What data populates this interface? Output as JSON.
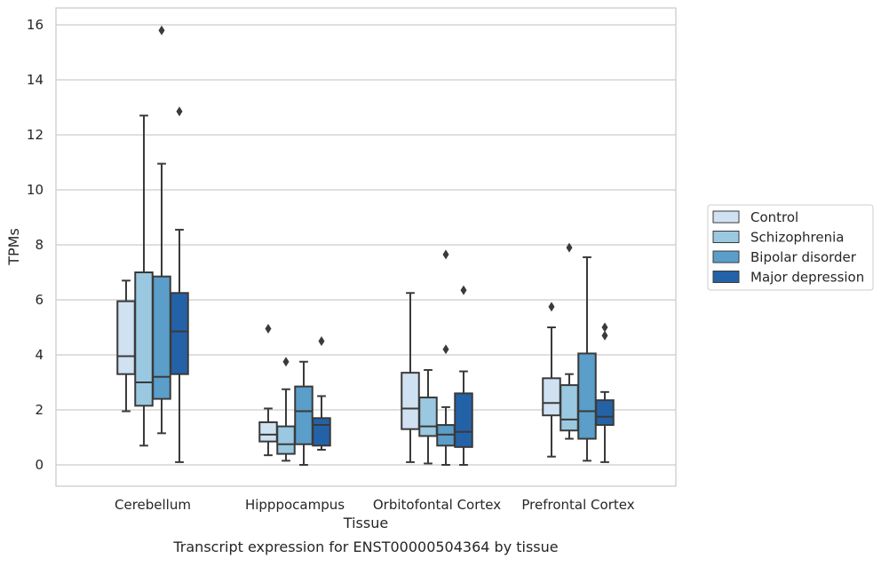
{
  "chart_data": {
    "type": "box",
    "title": "",
    "caption": "Transcript expression for ENST00000504364 by tissue",
    "xlabel": "Tissue",
    "ylabel": "TPMs",
    "ylim": [
      -0.75,
      16.6
    ],
    "yticks": [
      0,
      2,
      4,
      6,
      8,
      10,
      12,
      14,
      16
    ],
    "grid": "horizontal",
    "legend_position": "right",
    "categories": [
      "Cerebellum",
      "Hipppocampus",
      "Orbitofontal Cortex",
      "Prefrontal Cortex"
    ],
    "series": [
      {
        "name": "Control",
        "color": "#d0e1f2",
        "boxes": [
          {
            "whislo": 1.95,
            "q1": 3.3,
            "med": 3.95,
            "q3": 5.95,
            "whishi": 6.7,
            "fliers": []
          },
          {
            "whislo": 0.35,
            "q1": 0.85,
            "med": 1.1,
            "q3": 1.55,
            "whishi": 2.05,
            "fliers": [
              4.95
            ]
          },
          {
            "whislo": 0.1,
            "q1": 1.3,
            "med": 2.05,
            "q3": 3.35,
            "whishi": 6.25,
            "fliers": []
          },
          {
            "whislo": 0.3,
            "q1": 1.8,
            "med": 2.25,
            "q3": 3.15,
            "whishi": 5.0,
            "fliers": [
              5.75
            ]
          }
        ]
      },
      {
        "name": "Schizophrenia",
        "color": "#9ac8e0",
        "boxes": [
          {
            "whislo": 0.7,
            "q1": 2.15,
            "med": 3.0,
            "q3": 7.0,
            "whishi": 12.7,
            "fliers": []
          },
          {
            "whislo": 0.15,
            "q1": 0.4,
            "med": 0.75,
            "q3": 1.4,
            "whishi": 2.75,
            "fliers": [
              3.75
            ]
          },
          {
            "whislo": 0.05,
            "q1": 1.05,
            "med": 1.4,
            "q3": 2.45,
            "whishi": 3.45,
            "fliers": []
          },
          {
            "whislo": 0.95,
            "q1": 1.25,
            "med": 1.65,
            "q3": 2.9,
            "whishi": 3.3,
            "fliers": [
              7.9
            ]
          }
        ]
      },
      {
        "name": "Bipolar disorder",
        "color": "#5a9ec9",
        "boxes": [
          {
            "whislo": 1.15,
            "q1": 2.4,
            "med": 3.2,
            "q3": 6.85,
            "whishi": 10.95,
            "fliers": [
              15.8
            ]
          },
          {
            "whislo": 0.0,
            "q1": 0.75,
            "med": 1.95,
            "q3": 2.85,
            "whishi": 3.75,
            "fliers": []
          },
          {
            "whislo": 0.0,
            "q1": 0.7,
            "med": 1.1,
            "q3": 1.45,
            "whishi": 2.1,
            "fliers": [
              4.2,
              7.65
            ]
          },
          {
            "whislo": 0.15,
            "q1": 0.95,
            "med": 1.95,
            "q3": 4.05,
            "whishi": 7.55,
            "fliers": []
          }
        ]
      },
      {
        "name": "Major depression",
        "color": "#2462a8",
        "boxes": [
          {
            "whislo": 0.1,
            "q1": 3.3,
            "med": 4.85,
            "q3": 6.25,
            "whishi": 8.55,
            "fliers": [
              12.85
            ]
          },
          {
            "whislo": 0.55,
            "q1": 0.7,
            "med": 1.45,
            "q3": 1.7,
            "whishi": 2.5,
            "fliers": [
              4.5
            ]
          },
          {
            "whislo": 0.0,
            "q1": 0.65,
            "med": 1.2,
            "q3": 2.6,
            "whishi": 3.4,
            "fliers": [
              6.35
            ]
          },
          {
            "whislo": 0.1,
            "q1": 1.45,
            "med": 1.75,
            "q3": 2.35,
            "whishi": 2.65,
            "fliers": [
              4.7,
              5.0
            ]
          }
        ]
      }
    ]
  }
}
